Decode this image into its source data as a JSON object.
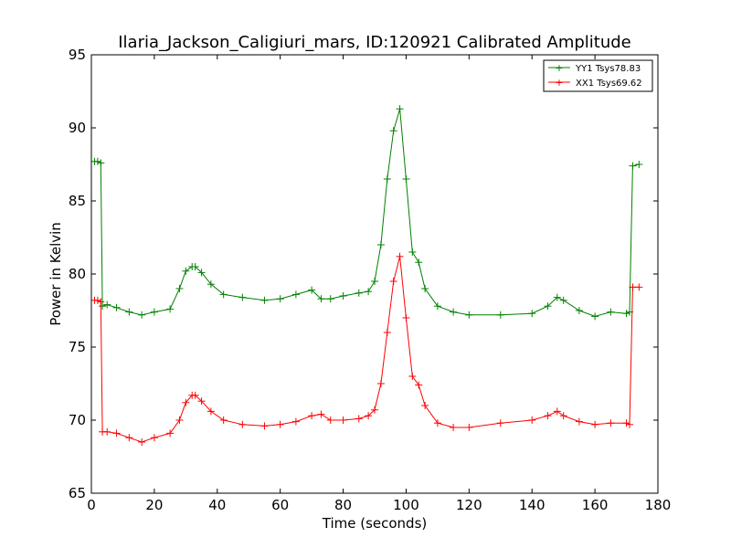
{
  "chart_data": {
    "type": "line",
    "title": "Ilaria_Jackson_Caligiuri_mars, ID:120921 Calibrated Amplitude",
    "xlabel": "Time (seconds)",
    "ylabel": "Power in Kelvin",
    "xlim": [
      0,
      180
    ],
    "ylim": [
      65,
      95
    ],
    "xticks": [
      0,
      20,
      40,
      60,
      80,
      100,
      120,
      140,
      160,
      180
    ],
    "yticks": [
      65,
      70,
      75,
      80,
      85,
      90,
      95
    ],
    "marker": "+",
    "legend_position": "top-right",
    "grid": false,
    "series": [
      {
        "name": "YY1 Tsys78.83",
        "color": "#008000",
        "x": [
          1,
          2,
          3,
          3.5,
          5,
          8,
          12,
          16,
          20,
          25,
          28,
          30,
          32,
          33,
          35,
          38,
          42,
          48,
          55,
          60,
          65,
          70,
          73,
          76,
          80,
          85,
          88,
          90,
          92,
          94,
          96,
          98,
          100,
          102,
          104,
          106,
          110,
          115,
          120,
          130,
          140,
          145,
          148,
          150,
          155,
          160,
          165,
          170,
          171,
          172,
          174
        ],
        "y": [
          87.7,
          87.7,
          87.6,
          77.8,
          77.9,
          77.7,
          77.4,
          77.2,
          77.4,
          77.6,
          79.0,
          80.2,
          80.5,
          80.5,
          80.1,
          79.3,
          78.6,
          78.4,
          78.2,
          78.3,
          78.6,
          78.9,
          78.3,
          78.3,
          78.5,
          78.7,
          78.8,
          79.5,
          82.0,
          86.5,
          89.8,
          91.3,
          86.5,
          81.5,
          80.8,
          79.0,
          77.8,
          77.4,
          77.2,
          77.2,
          77.3,
          77.8,
          78.4,
          78.2,
          77.5,
          77.1,
          77.4,
          77.3,
          77.4,
          87.4,
          87.5
        ]
      },
      {
        "name": "XX1 Tsys69.62",
        "color": "#ff0000",
        "x": [
          1,
          2,
          3,
          3.5,
          5,
          8,
          12,
          16,
          20,
          25,
          28,
          30,
          32,
          33,
          35,
          38,
          42,
          48,
          55,
          60,
          65,
          70,
          73,
          76,
          80,
          85,
          88,
          90,
          92,
          94,
          96,
          98,
          100,
          102,
          104,
          106,
          110,
          115,
          120,
          130,
          140,
          145,
          148,
          150,
          155,
          160,
          165,
          170,
          171,
          172,
          174
        ],
        "y": [
          78.2,
          78.2,
          78.1,
          69.2,
          69.2,
          69.1,
          68.8,
          68.5,
          68.8,
          69.1,
          70.0,
          71.2,
          71.7,
          71.7,
          71.3,
          70.6,
          70.0,
          69.7,
          69.6,
          69.7,
          69.9,
          70.3,
          70.4,
          70.0,
          70.0,
          70.1,
          70.3,
          70.7,
          72.5,
          76.0,
          79.5,
          81.2,
          77.0,
          73.0,
          72.4,
          71.0,
          69.8,
          69.5,
          69.5,
          69.8,
          70.0,
          70.3,
          70.6,
          70.3,
          69.9,
          69.7,
          69.8,
          69.8,
          69.7,
          79.1,
          79.1
        ]
      }
    ]
  }
}
